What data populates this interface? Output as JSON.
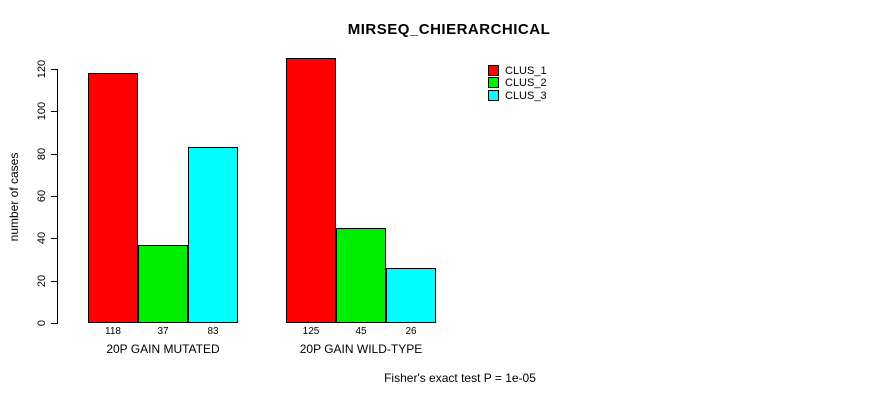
{
  "chart_data": {
    "type": "bar",
    "title": "MIRSEQ_CHIERARCHICAL",
    "ylabel": "number of cases",
    "xlabel": "",
    "ylim": [
      0,
      120
    ],
    "yticks": [
      0,
      20,
      40,
      60,
      80,
      100,
      120
    ],
    "categories": [
      "20P GAIN MUTATED",
      "20P GAIN WILD-TYPE"
    ],
    "series": [
      {
        "name": "CLUS_1",
        "color": "#ff0000",
        "values": [
          118,
          125
        ]
      },
      {
        "name": "CLUS_2",
        "color": "#00ee00",
        "values": [
          37,
          45
        ]
      },
      {
        "name": "CLUS_3",
        "color": "#00ffff",
        "values": [
          83,
          26
        ]
      }
    ],
    "value_labels_shown": true,
    "grid": false,
    "legend_position": "top-right",
    "footnote": "Fisher's exact test P = 1e-05",
    "axis_color": "#000000",
    "background_color": "#ffffff"
  }
}
